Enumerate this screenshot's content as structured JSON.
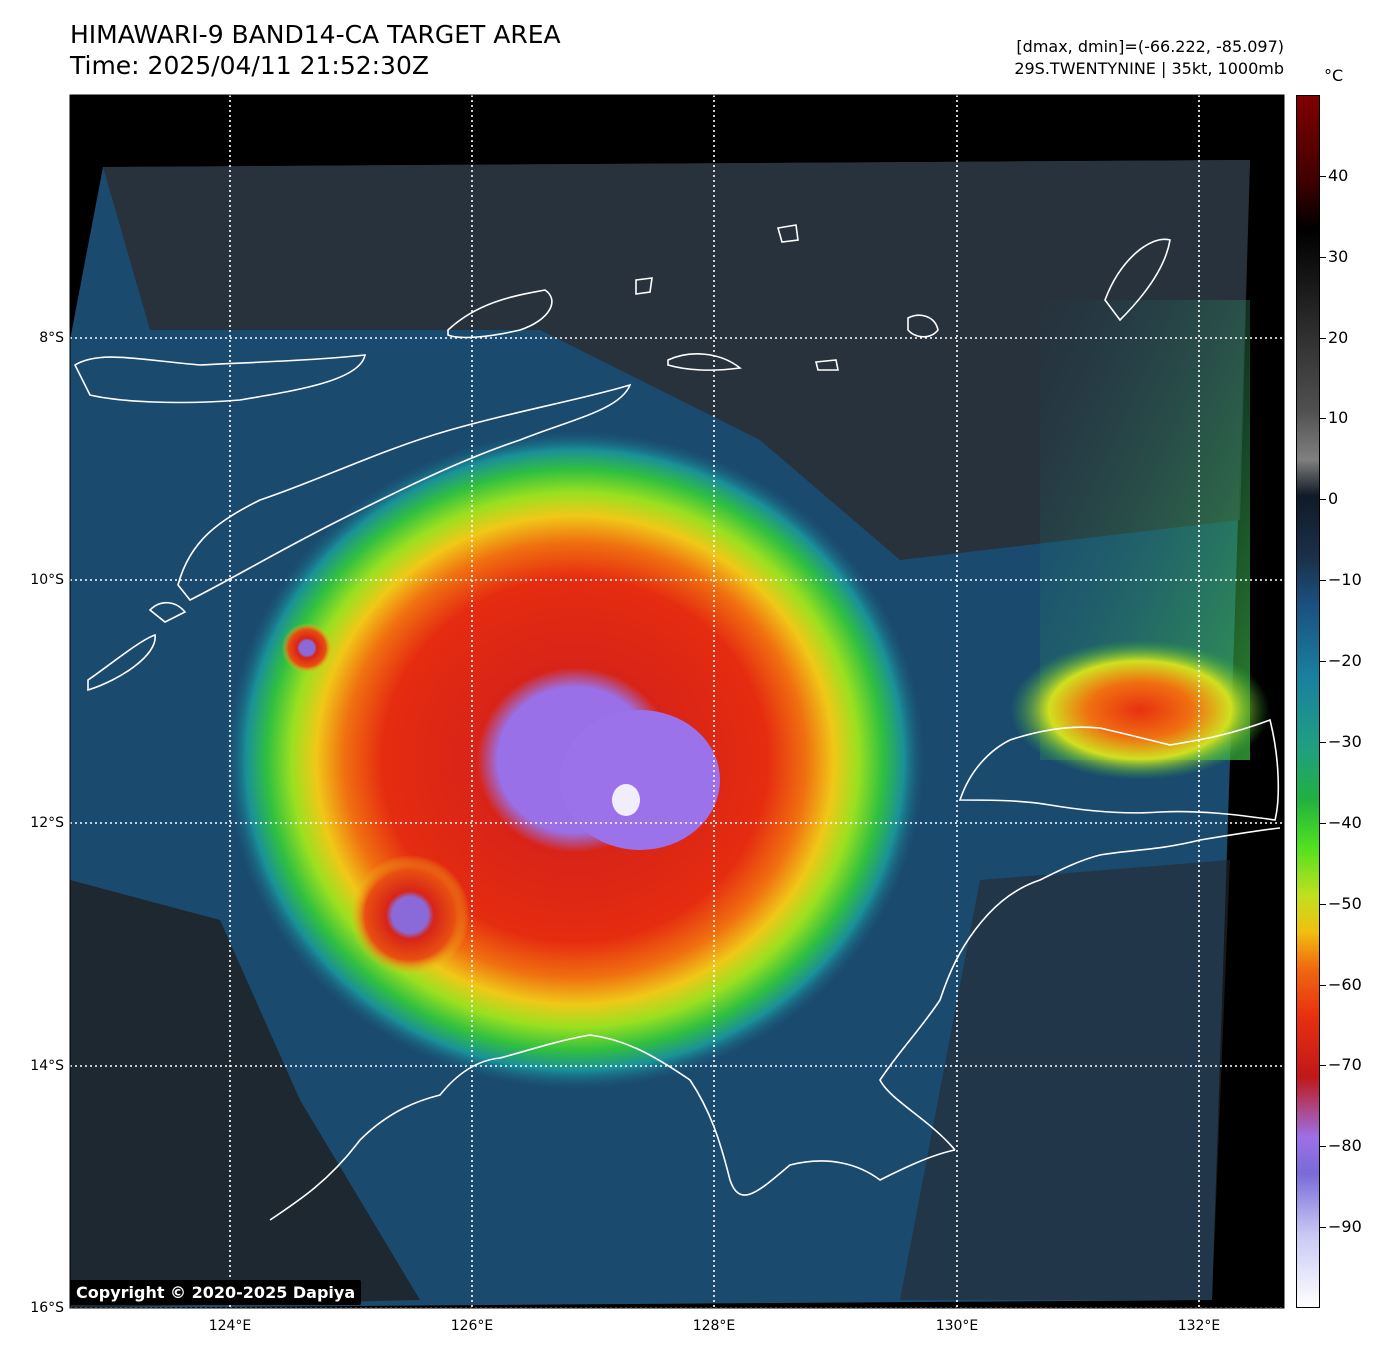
{
  "header": {
    "title_line1": "HIMAWARI-9 BAND14-CA TARGET AREA",
    "title_line2": "Time: 2025/04/11 21:52:30Z",
    "info_line1": "[dmax, dmin]=(-66.222, -85.097)",
    "info_line2": "29S.TWENTYNINE | 35kt, 1000mb"
  },
  "colorbar": {
    "unit": "°C",
    "ticks": [
      "40",
      "30",
      "20",
      "10",
      "0",
      "−10",
      "−20",
      "−30",
      "−40",
      "−50",
      "−60",
      "−70",
      "−80",
      "−90"
    ],
    "values": [
      40,
      30,
      20,
      10,
      0,
      -10,
      -20,
      -30,
      -40,
      -50,
      -60,
      -70,
      -80,
      -90
    ],
    "range": [
      -100,
      50
    ]
  },
  "axes": {
    "lat_labels": [
      "8°S",
      "10°S",
      "12°S",
      "14°S",
      "16°S"
    ],
    "lon_labels": [
      "124°E",
      "126°E",
      "128°E",
      "130°E",
      "132°E"
    ],
    "lat_values": [
      -8,
      -10,
      -12,
      -14,
      -16
    ],
    "lon_values": [
      124,
      126,
      128,
      130,
      132
    ]
  },
  "colors": {
    "cold_core": "#9a70e8",
    "red_band": "#e02a10",
    "coast": "#ffffff"
  },
  "footer": {
    "copyright": "Copyright © 2020-2025 Dapiya"
  }
}
